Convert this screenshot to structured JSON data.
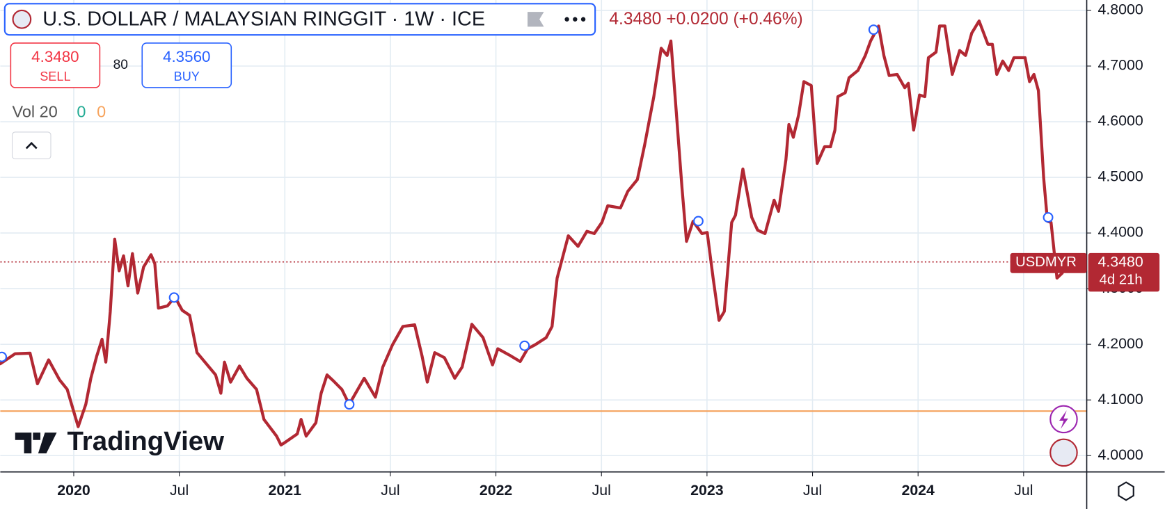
{
  "header": {
    "title": "U.S. DOLLAR / MALAYSIAN RINGGIT · 1W · ICE",
    "last": "4.3480",
    "change": "+0.0200",
    "change_pct": "(+0.46%)",
    "sell": "4.3480",
    "sell_label": "SELL",
    "spread": "80",
    "buy": "4.3560",
    "buy_label": "BUY",
    "volume_label": "Vol 20",
    "vol_a": "0",
    "vol_b": "0",
    "logo": "TradingView"
  },
  "chart_data": {
    "type": "line",
    "series": [
      {
        "name": "USDMYR",
        "color": "#b22833",
        "values": [
          4.165,
          4.183,
          4.184,
          4.129,
          4.172,
          4.136,
          4.119,
          4.052,
          4.092,
          4.139,
          4.179,
          4.209,
          4.168,
          4.259,
          4.389,
          4.332,
          4.359,
          4.305,
          4.363,
          4.292,
          4.339,
          4.361,
          4.345,
          4.265,
          4.269,
          4.285,
          4.261,
          4.252,
          4.185,
          4.161,
          4.145,
          4.112,
          4.168,
          4.132,
          4.161,
          4.139,
          4.119,
          4.065,
          4.035,
          4.019,
          4.025,
          4.039,
          4.065,
          4.035,
          4.059,
          4.112,
          4.145,
          4.135,
          4.119,
          4.092,
          4.139,
          4.105,
          4.159,
          4.199,
          4.232,
          4.235,
          4.179,
          4.132,
          4.185,
          4.176,
          4.139,
          4.159,
          4.236,
          4.212,
          4.163,
          4.192,
          4.181,
          4.169,
          4.192,
          4.199,
          4.212,
          4.232,
          4.319,
          4.395,
          4.376,
          4.403,
          4.399,
          4.419,
          4.449,
          4.445,
          4.475,
          4.496,
          4.559,
          4.645,
          4.732,
          4.719,
          4.745,
          4.625,
          4.479,
          4.385,
          4.421,
          4.399,
          4.401,
          4.319,
          4.243,
          4.259,
          4.419,
          4.432,
          4.515,
          4.428,
          4.405,
          4.399,
          4.459,
          4.439,
          4.532,
          4.595,
          4.572,
          4.612,
          4.672,
          4.665,
          4.525,
          4.555,
          4.555,
          4.585,
          4.645,
          4.652,
          4.679,
          4.692,
          4.719,
          4.745,
          4.772,
          4.719,
          4.683,
          4.685,
          4.661,
          4.669,
          4.585,
          4.648,
          4.645,
          4.715,
          4.725,
          4.772,
          4.772,
          4.685,
          4.728,
          4.719,
          4.759,
          4.781,
          4.739,
          4.739,
          4.685,
          4.709,
          4.692,
          4.715,
          4.715,
          4.672,
          4.685,
          4.656,
          4.499,
          4.421,
          4.419,
          4.319,
          4.328
        ]
      }
    ],
    "x": [
      2019.652,
      2019.722,
      2019.793,
      2019.828,
      2019.881,
      2019.933,
      2019.969,
      2020.021,
      2020.057,
      2020.081,
      2020.109,
      2020.134,
      2020.152,
      2020.173,
      2020.194,
      2020.215,
      2020.236,
      2020.257,
      2020.278,
      2020.303,
      2020.331,
      2020.366,
      2020.384,
      2020.401,
      2020.444,
      2020.479,
      2020.514,
      2020.549,
      2020.584,
      2020.637,
      2020.672,
      2020.697,
      2020.714,
      2020.743,
      2020.785,
      2020.82,
      2020.866,
      2020.901,
      2020.961,
      2020.982,
      2021.006,
      2021.059,
      2021.077,
      2021.101,
      2021.147,
      2021.172,
      2021.2,
      2021.228,
      2021.27,
      2021.305,
      2021.376,
      2021.429,
      2021.464,
      2021.51,
      2021.559,
      2021.615,
      2021.65,
      2021.675,
      2021.71,
      2021.756,
      2021.805,
      2021.84,
      2021.886,
      2021.939,
      2021.984,
      2022.009,
      2022.062,
      2022.115,
      2022.15,
      2022.185,
      2022.238,
      2022.266,
      2022.29,
      2022.343,
      2022.389,
      2022.431,
      2022.466,
      2022.502,
      2022.53,
      2022.59,
      2022.625,
      2022.67,
      2022.705,
      2022.748,
      2022.783,
      2022.811,
      2022.829,
      2022.853,
      2022.882,
      2022.903,
      2022.934,
      2022.976,
      2023.001,
      2023.029,
      2023.057,
      2023.082,
      2023.117,
      2023.135,
      2023.17,
      2023.212,
      2023.24,
      2023.275,
      2023.318,
      2023.339,
      2023.374,
      2023.388,
      2023.409,
      2023.434,
      2023.459,
      2023.494,
      2023.522,
      2023.557,
      2023.585,
      2023.606,
      2023.62,
      2023.655,
      2023.673,
      2023.715,
      2023.75,
      2023.775,
      2023.813,
      2023.838,
      2023.863,
      2023.901,
      2023.937,
      2023.954,
      2023.979,
      2024.007,
      2024.032,
      2024.049,
      2024.085,
      2024.102,
      2024.127,
      2024.162,
      2024.197,
      2024.225,
      2024.254,
      2024.289,
      2024.331,
      2024.352,
      2024.373,
      2024.401,
      2024.429,
      2024.454,
      2024.507,
      2024.528,
      2024.549,
      2024.57,
      2024.595,
      2024.613,
      2024.63,
      2024.658,
      2024.683
    ],
    "xlim": [
      2019.652,
      2024.799
    ],
    "ylim": [
      3.9707,
      4.8187
    ],
    "xticks": [
      {
        "value": 2020,
        "label": "2020"
      },
      {
        "value": 2020.5,
        "label": "Jul"
      },
      {
        "value": 2021,
        "label": "2021"
      },
      {
        "value": 2021.5,
        "label": "Jul"
      },
      {
        "value": 2022,
        "label": "2022"
      },
      {
        "value": 2022.5,
        "label": "Jul"
      },
      {
        "value": 2023,
        "label": "2023"
      },
      {
        "value": 2023.5,
        "label": "Jul"
      },
      {
        "value": 2024,
        "label": "2024"
      },
      {
        "value": 2024.5,
        "label": "Jul"
      }
    ],
    "yticks": [
      {
        "value": 4.0,
        "label": "4.0000"
      },
      {
        "value": 4.1,
        "label": "4.1000"
      },
      {
        "value": 4.2,
        "label": "4.2000"
      },
      {
        "value": 4.3,
        "label": "4.3000"
      },
      {
        "value": 4.4,
        "label": "4.4000"
      },
      {
        "value": 4.5,
        "label": "4.5000"
      },
      {
        "value": 4.6,
        "label": "4.6000"
      },
      {
        "value": 4.7,
        "label": "4.7000"
      },
      {
        "value": 4.8,
        "label": "4.8000"
      }
    ],
    "grid": true,
    "hline": {
      "value": 4.08,
      "color": "#f5a25d"
    },
    "price_line": {
      "value": 4.348,
      "label": "4.3480",
      "countdown": "4d 21h"
    }
  }
}
